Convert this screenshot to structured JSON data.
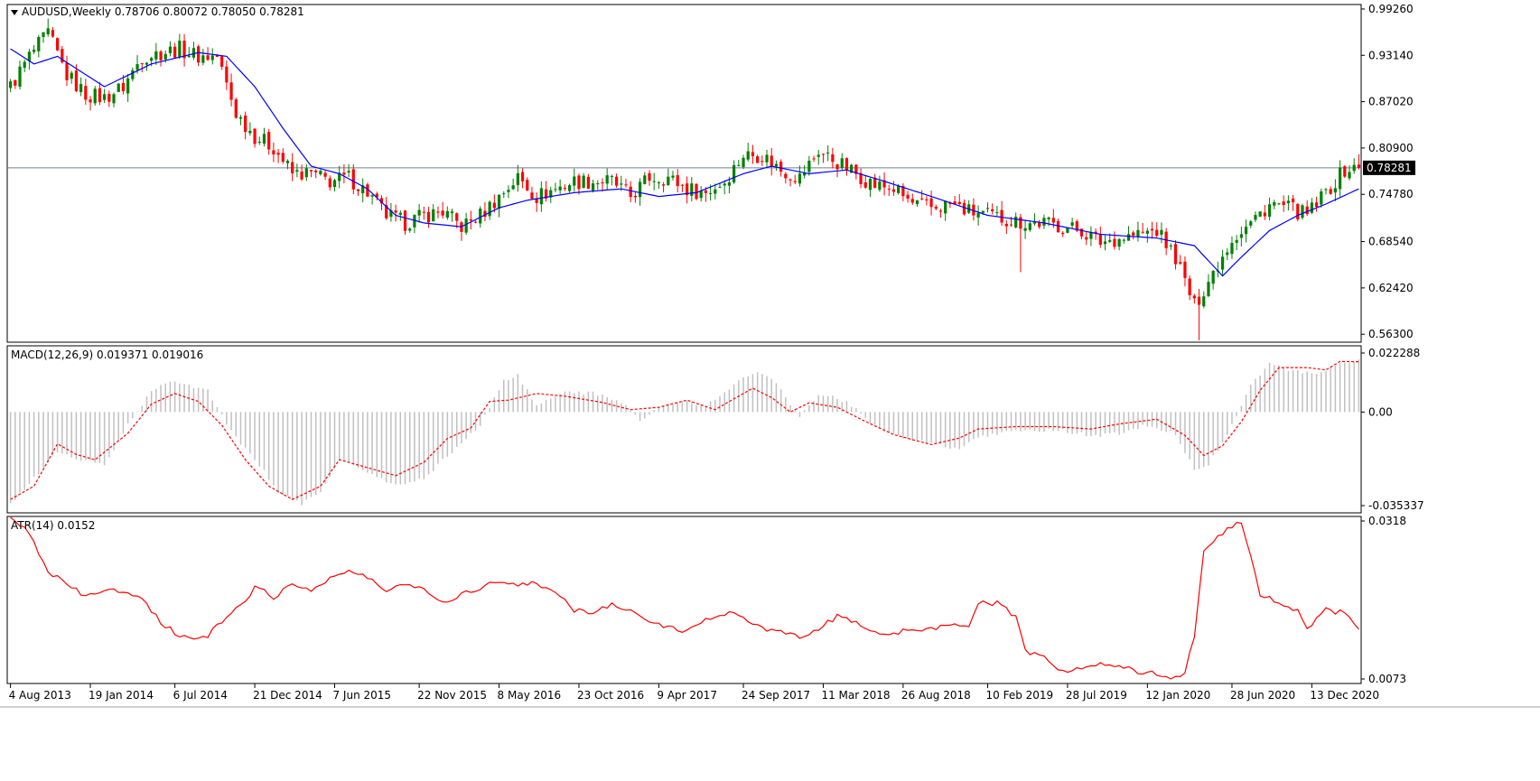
{
  "chart_data": [
    {
      "type": "candlestick",
      "title": "AUDUSD,Weekly  0.78706 0.80072 0.78050 0.78281",
      "symbol": "AUDUSD",
      "timeframe": "Weekly",
      "ohlc_last": {
        "open": "0.78706",
        "high": "0.80072",
        "low": "0.78050",
        "close": "0.78281"
      },
      "bid_label": "0.78281",
      "bid_value": 0.78281,
      "y_ticks": [
        "0.99260",
        "0.93140",
        "0.87020",
        "0.80900",
        "0.74780",
        "0.68540",
        "0.62420",
        "0.56300"
      ],
      "ylim": [
        0.5525,
        0.9985
      ],
      "x_tick_labels": [
        "4 Aug 2013",
        "19 Jan 2014",
        "6 Jul 2014",
        "21 Dec 2014",
        "7 Jun 2015",
        "22 Nov 2015",
        "8 May 2016",
        "23 Oct 2016",
        "9 Apr 2017",
        "24 Sep 2017",
        "11 Mar 2018",
        "26 Aug 2018",
        "10 Feb 2019",
        "28 Jul 2019",
        "12 Jan 2020",
        "28 Jun 2020",
        "13 Dec 2020"
      ],
      "up_color": "#008000",
      "down_color": "#ff0000",
      "ma_color": "#0000ff",
      "close_anchors": [
        [
          0,
          0.89
        ],
        [
          4,
          0.93
        ],
        [
          8,
          0.96
        ],
        [
          12,
          0.905
        ],
        [
          16,
          0.88
        ],
        [
          20,
          0.875
        ],
        [
          24,
          0.89
        ],
        [
          28,
          0.93
        ],
        [
          32,
          0.935
        ],
        [
          36,
          0.94
        ],
        [
          40,
          0.93
        ],
        [
          44,
          0.93
        ],
        [
          48,
          0.855
        ],
        [
          52,
          0.825
        ],
        [
          56,
          0.81
        ],
        [
          60,
          0.775
        ],
        [
          64,
          0.775
        ],
        [
          68,
          0.765
        ],
        [
          72,
          0.77
        ],
        [
          76,
          0.75
        ],
        [
          80,
          0.72
        ],
        [
          84,
          0.71
        ],
        [
          88,
          0.72
        ],
        [
          92,
          0.725
        ],
        [
          96,
          0.705
        ],
        [
          100,
          0.72
        ],
        [
          104,
          0.745
        ],
        [
          108,
          0.77
        ],
        [
          112,
          0.745
        ],
        [
          116,
          0.755
        ],
        [
          120,
          0.765
        ],
        [
          124,
          0.765
        ],
        [
          128,
          0.765
        ],
        [
          132,
          0.745
        ],
        [
          136,
          0.77
        ],
        [
          140,
          0.77
        ],
        [
          144,
          0.755
        ],
        [
          148,
          0.75
        ],
        [
          152,
          0.765
        ],
        [
          156,
          0.8
        ],
        [
          160,
          0.8
        ],
        [
          164,
          0.78
        ],
        [
          168,
          0.77
        ],
        [
          172,
          0.805
        ],
        [
          176,
          0.79
        ],
        [
          180,
          0.775
        ],
        [
          184,
          0.76
        ],
        [
          188,
          0.755
        ],
        [
          192,
          0.735
        ],
        [
          196,
          0.73
        ],
        [
          200,
          0.735
        ],
        [
          204,
          0.725
        ],
        [
          208,
          0.72
        ],
        [
          212,
          0.715
        ],
        [
          216,
          0.71
        ],
        [
          220,
          0.71
        ],
        [
          224,
          0.705
        ],
        [
          228,
          0.7
        ],
        [
          232,
          0.685
        ],
        [
          236,
          0.69
        ],
        [
          240,
          0.695
        ],
        [
          244,
          0.7
        ],
        [
          248,
          0.665
        ],
        [
          252,
          0.6
        ],
        [
          256,
          0.645
        ],
        [
          260,
          0.69
        ],
        [
          264,
          0.71
        ],
        [
          268,
          0.735
        ],
        [
          272,
          0.73
        ],
        [
          276,
          0.72
        ],
        [
          280,
          0.75
        ],
        [
          284,
          0.78
        ],
        [
          287,
          0.782
        ]
      ],
      "ma_anchors": [
        [
          0,
          0.94
        ],
        [
          5,
          0.92
        ],
        [
          10,
          0.93
        ],
        [
          20,
          0.89
        ],
        [
          30,
          0.92
        ],
        [
          40,
          0.935
        ],
        [
          46,
          0.93
        ],
        [
          52,
          0.89
        ],
        [
          58,
          0.835
        ],
        [
          64,
          0.785
        ],
        [
          70,
          0.775
        ],
        [
          76,
          0.755
        ],
        [
          82,
          0.72
        ],
        [
          88,
          0.71
        ],
        [
          96,
          0.705
        ],
        [
          104,
          0.73
        ],
        [
          110,
          0.74
        ],
        [
          120,
          0.75
        ],
        [
          130,
          0.755
        ],
        [
          138,
          0.745
        ],
        [
          146,
          0.75
        ],
        [
          156,
          0.775
        ],
        [
          162,
          0.785
        ],
        [
          170,
          0.775
        ],
        [
          178,
          0.78
        ],
        [
          186,
          0.765
        ],
        [
          196,
          0.745
        ],
        [
          208,
          0.72
        ],
        [
          220,
          0.71
        ],
        [
          232,
          0.695
        ],
        [
          244,
          0.69
        ],
        [
          252,
          0.68
        ],
        [
          258,
          0.64
        ],
        [
          262,
          0.665
        ],
        [
          268,
          0.7
        ],
        [
          274,
          0.72
        ],
        [
          280,
          0.735
        ],
        [
          287,
          0.755
        ]
      ]
    },
    {
      "type": "bar+line",
      "title": "MACD(12,26,9) 0.019371 0.019016",
      "indicator": "MACD(12,26,9)",
      "values_text": [
        "0.019371",
        "0.019016"
      ],
      "y_ticks": [
        "0.022288",
        "0.00",
        "-0.035337"
      ],
      "ylim": [
        -0.035337,
        0.022288
      ],
      "histogram_color": "#c0c0c0",
      "signal_color": "#ff0000",
      "macd_anchors": [
        [
          0,
          -0.035
        ],
        [
          5,
          -0.025
        ],
        [
          10,
          -0.015
        ],
        [
          15,
          -0.018
        ],
        [
          20,
          -0.02
        ],
        [
          25,
          -0.005
        ],
        [
          30,
          0.008
        ],
        [
          35,
          0.012
        ],
        [
          42,
          0.008
        ],
        [
          48,
          -0.01
        ],
        [
          53,
          -0.02
        ],
        [
          57,
          -0.03
        ],
        [
          62,
          -0.035
        ],
        [
          66,
          -0.03
        ],
        [
          70,
          -0.018
        ],
        [
          75,
          -0.022
        ],
        [
          82,
          -0.028
        ],
        [
          88,
          -0.025
        ],
        [
          94,
          -0.015
        ],
        [
          100,
          -0.005
        ],
        [
          105,
          0.012
        ],
        [
          108,
          0.014
        ],
        [
          112,
          0.002
        ],
        [
          118,
          0.008
        ],
        [
          124,
          0.007
        ],
        [
          130,
          0.004
        ],
        [
          134,
          -0.003
        ],
        [
          138,
          0.002
        ],
        [
          144,
          0.004
        ],
        [
          148,
          0.002
        ],
        [
          152,
          0.008
        ],
        [
          158,
          0.015
        ],
        [
          162,
          0.013
        ],
        [
          168,
          -0.002
        ],
        [
          172,
          0.007
        ],
        [
          178,
          0.004
        ],
        [
          184,
          -0.005
        ],
        [
          190,
          -0.01
        ],
        [
          196,
          -0.012
        ],
        [
          202,
          -0.014
        ],
        [
          206,
          -0.01
        ],
        [
          212,
          -0.007
        ],
        [
          218,
          -0.007
        ],
        [
          224,
          -0.007
        ],
        [
          230,
          -0.009
        ],
        [
          236,
          -0.008
        ],
        [
          242,
          -0.005
        ],
        [
          248,
          -0.008
        ],
        [
          252,
          -0.022
        ],
        [
          255,
          -0.02
        ],
        [
          260,
          -0.005
        ],
        [
          264,
          0.01
        ],
        [
          268,
          0.019
        ],
        [
          272,
          0.016
        ],
        [
          278,
          0.014
        ],
        [
          282,
          0.018
        ],
        [
          287,
          0.0194
        ]
      ],
      "signal_anchors": [
        [
          0,
          -0.033
        ],
        [
          5,
          -0.028
        ],
        [
          10,
          -0.012
        ],
        [
          14,
          -0.016
        ],
        [
          18,
          -0.018
        ],
        [
          25,
          -0.008
        ],
        [
          30,
          0.003
        ],
        [
          35,
          0.007
        ],
        [
          40,
          0.004
        ],
        [
          45,
          -0.005
        ],
        [
          50,
          -0.018
        ],
        [
          55,
          -0.028
        ],
        [
          60,
          -0.033
        ],
        [
          66,
          -0.028
        ],
        [
          70,
          -0.018
        ],
        [
          76,
          -0.021
        ],
        [
          82,
          -0.024
        ],
        [
          88,
          -0.019
        ],
        [
          93,
          -0.01
        ],
        [
          98,
          -0.006
        ],
        [
          102,
          0.004
        ],
        [
          106,
          0.0045
        ],
        [
          112,
          0.007
        ],
        [
          118,
          0.006
        ],
        [
          126,
          0.0036
        ],
        [
          132,
          0.0009
        ],
        [
          138,
          0.0018
        ],
        [
          144,
          0.0045
        ],
        [
          150,
          0.0009
        ],
        [
          154,
          0.005
        ],
        [
          158,
          0.009
        ],
        [
          162,
          0.0055
        ],
        [
          166,
          0
        ],
        [
          170,
          0.0035
        ],
        [
          176,
          0.0018
        ],
        [
          182,
          -0.0036
        ],
        [
          188,
          -0.0085
        ],
        [
          196,
          -0.0123
        ],
        [
          202,
          -0.0098
        ],
        [
          206,
          -0.0064
        ],
        [
          214,
          -0.0055
        ],
        [
          222,
          -0.0055
        ],
        [
          230,
          -0.0064
        ],
        [
          236,
          -0.0045
        ],
        [
          244,
          -0.0027
        ],
        [
          250,
          -0.0088
        ],
        [
          254,
          -0.0164
        ],
        [
          258,
          -0.0127
        ],
        [
          262,
          -0.0036
        ],
        [
          266,
          0.0082
        ],
        [
          270,
          0.0168
        ],
        [
          276,
          0.0168
        ],
        [
          280,
          0.0159
        ],
        [
          283,
          0.0191
        ],
        [
          287,
          0.019
        ]
      ]
    },
    {
      "type": "line",
      "title": "ATR(14) 0.0152",
      "indicator": "ATR(14)",
      "value_text": "0.0152",
      "y_ticks": [
        "0.0318",
        "0.0073"
      ],
      "ylim": [
        0.0066,
        0.0325
      ],
      "line_color": "#ff0000",
      "atr_anchors": [
        [
          0,
          0.032
        ],
        [
          4,
          0.03
        ],
        [
          8,
          0.024
        ],
        [
          12,
          0.022
        ],
        [
          16,
          0.02
        ],
        [
          20,
          0.021
        ],
        [
          24,
          0.021
        ],
        [
          28,
          0.02
        ],
        [
          32,
          0.016
        ],
        [
          36,
          0.014
        ],
        [
          40,
          0.0135
        ],
        [
          42,
          0.014
        ],
        [
          46,
          0.017
        ],
        [
          50,
          0.019
        ],
        [
          52,
          0.022
        ],
        [
          56,
          0.02
        ],
        [
          60,
          0.022
        ],
        [
          64,
          0.021
        ],
        [
          68,
          0.023
        ],
        [
          72,
          0.024
        ],
        [
          76,
          0.023
        ],
        [
          80,
          0.021
        ],
        [
          84,
          0.022
        ],
        [
          88,
          0.0215
        ],
        [
          92,
          0.019
        ],
        [
          96,
          0.0205
        ],
        [
          100,
          0.0215
        ],
        [
          104,
          0.0225
        ],
        [
          108,
          0.022
        ],
        [
          112,
          0.022
        ],
        [
          116,
          0.021
        ],
        [
          120,
          0.018
        ],
        [
          124,
          0.0175
        ],
        [
          128,
          0.019
        ],
        [
          132,
          0.018
        ],
        [
          136,
          0.016
        ],
        [
          140,
          0.0155
        ],
        [
          144,
          0.0145
        ],
        [
          148,
          0.0165
        ],
        [
          152,
          0.0175
        ],
        [
          156,
          0.017
        ],
        [
          160,
          0.015
        ],
        [
          164,
          0.0145
        ],
        [
          168,
          0.014
        ],
        [
          172,
          0.015
        ],
        [
          176,
          0.017
        ],
        [
          180,
          0.016
        ],
        [
          184,
          0.0145
        ],
        [
          188,
          0.0145
        ],
        [
          192,
          0.015
        ],
        [
          196,
          0.015
        ],
        [
          200,
          0.016
        ],
        [
          204,
          0.0155
        ],
        [
          206,
          0.019
        ],
        [
          210,
          0.019
        ],
        [
          214,
          0.017
        ],
        [
          216,
          0.0115
        ],
        [
          220,
          0.0105
        ],
        [
          224,
          0.0085
        ],
        [
          228,
          0.009
        ],
        [
          232,
          0.0095
        ],
        [
          236,
          0.0095
        ],
        [
          240,
          0.0085
        ],
        [
          244,
          0.008
        ],
        [
          248,
          0.0075
        ],
        [
          250,
          0.0085
        ],
        [
          252,
          0.014
        ],
        [
          254,
          0.027
        ],
        [
          258,
          0.03
        ],
        [
          262,
          0.0318
        ],
        [
          264,
          0.026
        ],
        [
          266,
          0.0205
        ],
        [
          270,
          0.019
        ],
        [
          274,
          0.018
        ],
        [
          276,
          0.015
        ],
        [
          280,
          0.018
        ],
        [
          284,
          0.0175
        ],
        [
          287,
          0.0152
        ]
      ]
    }
  ]
}
